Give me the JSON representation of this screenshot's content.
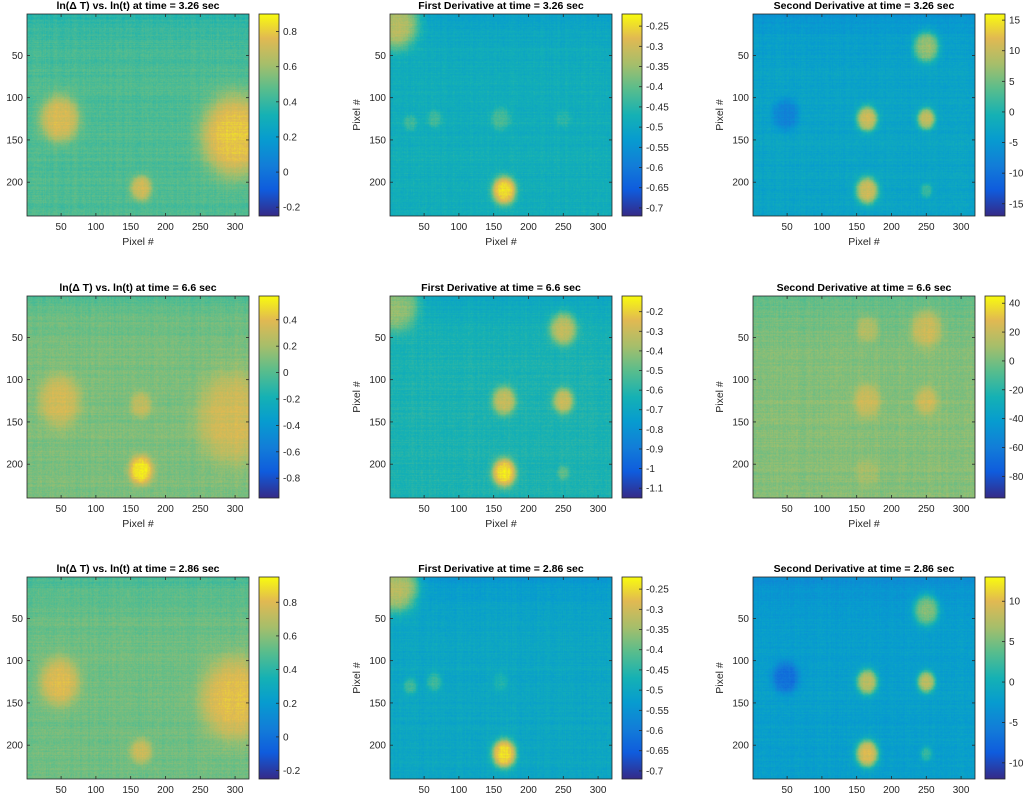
{
  "figure_title": "Thermal heatmap panels",
  "chart_data": [
    {
      "type": "heatmap",
      "title": "ln(Δ T) vs. ln(t) at time = 3.26 sec",
      "xlabel": "Pixel #",
      "ylabel": "",
      "xlim": [
        1,
        320
      ],
      "ylim": [
        1,
        240
      ],
      "xticks": [
        50,
        100,
        150,
        200,
        250,
        300
      ],
      "yticks": [
        50,
        100,
        150,
        200
      ],
      "clim": [
        -0.25,
        0.9
      ],
      "cticks": [
        -0.2,
        0,
        0.2,
        0.4,
        0.6,
        0.8
      ],
      "colorbar_tick_labels": [
        "-0.2",
        "0",
        "0.2",
        "0.4",
        "0.6",
        "0.8"
      ],
      "background_level": 0.45,
      "features": [
        {
          "x": 48,
          "y": 125,
          "r": 26,
          "value": 0.75
        },
        {
          "x": 165,
          "y": 207,
          "r": 14,
          "value": 0.72
        },
        {
          "x": 300,
          "y": 145,
          "r": 45,
          "value": 0.8
        }
      ]
    },
    {
      "type": "heatmap",
      "title": "First Derivative at time = 3.26 sec",
      "xlabel": "Pixel #",
      "ylabel": "Pixel #",
      "xlim": [
        1,
        320
      ],
      "ylim": [
        1,
        240
      ],
      "xticks": [
        50,
        100,
        150,
        200,
        250,
        300
      ],
      "yticks": [
        50,
        100,
        150,
        200
      ],
      "clim": [
        -0.72,
        -0.22
      ],
      "cticks": [
        -0.7,
        -0.65,
        -0.6,
        -0.55,
        -0.5,
        -0.45,
        -0.4,
        -0.35,
        -0.3,
        -0.25
      ],
      "colorbar_tick_labels": [
        "-0.7",
        "-0.65",
        "-0.6",
        "-0.55",
        "-0.5",
        "-0.45",
        "-0.4",
        "-0.35",
        "-0.3",
        "-0.25"
      ],
      "background_level": -0.48,
      "features": [
        {
          "x": 165,
          "y": 210,
          "r": 16,
          "value": -0.24
        },
        {
          "x": 160,
          "y": 125,
          "r": 13,
          "value": -0.42
        },
        {
          "x": 65,
          "y": 125,
          "r": 10,
          "value": -0.43
        },
        {
          "x": 30,
          "y": 130,
          "r": 9,
          "value": -0.43
        },
        {
          "x": 250,
          "y": 125,
          "r": 10,
          "value": -0.45
        },
        {
          "x": 10,
          "y": 10,
          "r": 30,
          "value": -0.3
        }
      ]
    },
    {
      "type": "heatmap",
      "title": "Second Derivative at time = 3.26 sec",
      "xlabel": "Pixel #",
      "ylabel": "Pixel #",
      "xlim": [
        1,
        320
      ],
      "ylim": [
        1,
        240
      ],
      "xticks": [
        50,
        100,
        150,
        200,
        250,
        300
      ],
      "yticks": [
        50,
        100,
        150,
        200
      ],
      "clim": [
        -17,
        16
      ],
      "cticks": [
        -15,
        -10,
        -5,
        0,
        5,
        10,
        15
      ],
      "colorbar_tick_labels": [
        "-15",
        "-10",
        "-5",
        "0",
        "5",
        "10",
        "15"
      ],
      "background_level": -3,
      "features": [
        {
          "x": 165,
          "y": 125,
          "r": 14,
          "value": 11
        },
        {
          "x": 250,
          "y": 125,
          "r": 12,
          "value": 10
        },
        {
          "x": 165,
          "y": 210,
          "r": 15,
          "value": 11
        },
        {
          "x": 250,
          "y": 40,
          "r": 17,
          "value": 8
        },
        {
          "x": 250,
          "y": 210,
          "r": 8,
          "value": 2
        },
        {
          "x": 48,
          "y": 120,
          "r": 18,
          "value": -8
        }
      ]
    },
    {
      "type": "heatmap",
      "title": "ln(Δ T) vs. ln(t) at time = 6.6 sec",
      "xlabel": "Pixel #",
      "ylabel": "",
      "xlim": [
        1,
        320
      ],
      "ylim": [
        1,
        240
      ],
      "xticks": [
        50,
        100,
        150,
        200,
        250,
        300
      ],
      "yticks": [
        50,
        100,
        150,
        200
      ],
      "clim": [
        -0.95,
        0.58
      ],
      "cticks": [
        -0.8,
        -0.6,
        -0.4,
        -0.2,
        0,
        0.2,
        0.4
      ],
      "colorbar_tick_labels": [
        "-0.8",
        "-0.6",
        "-0.4",
        "-0.2",
        "0",
        "0.2",
        "0.4"
      ],
      "background_level": 0.1,
      "features": [
        {
          "x": 48,
          "y": 125,
          "r": 28,
          "value": 0.35
        },
        {
          "x": 165,
          "y": 207,
          "r": 16,
          "value": 0.55
        },
        {
          "x": 165,
          "y": 130,
          "r": 14,
          "value": 0.3
        },
        {
          "x": 300,
          "y": 145,
          "r": 50,
          "value": 0.35
        }
      ]
    },
    {
      "type": "heatmap",
      "title": "First Derivative at time = 6.6 sec",
      "xlabel": "Pixel #",
      "ylabel": "Pixel #",
      "xlim": [
        1,
        320
      ],
      "ylim": [
        1,
        240
      ],
      "xticks": [
        50,
        100,
        150,
        200,
        250,
        300
      ],
      "yticks": [
        50,
        100,
        150,
        200
      ],
      "clim": [
        -1.15,
        -0.12
      ],
      "cticks": [
        -1.1,
        -1,
        -0.9,
        -0.8,
        -0.7,
        -0.6,
        -0.5,
        -0.4,
        -0.3,
        -0.2
      ],
      "colorbar_tick_labels": [
        "-1.1",
        "-1",
        "-0.9",
        "-0.8",
        "-0.7",
        "-0.6",
        "-0.5",
        "-0.4",
        "-0.3",
        "-0.2"
      ],
      "background_level": -0.62,
      "features": [
        {
          "x": 165,
          "y": 210,
          "r": 16,
          "value": -0.15
        },
        {
          "x": 165,
          "y": 125,
          "r": 16,
          "value": -0.3
        },
        {
          "x": 250,
          "y": 125,
          "r": 14,
          "value": -0.3
        },
        {
          "x": 250,
          "y": 40,
          "r": 18,
          "value": -0.3
        },
        {
          "x": 250,
          "y": 210,
          "r": 8,
          "value": -0.5
        },
        {
          "x": 10,
          "y": 10,
          "r": 30,
          "value": -0.35
        }
      ]
    },
    {
      "type": "heatmap",
      "title": "Second Derivative at time = 6.6 sec",
      "xlabel": "Pixel #",
      "ylabel": "Pixel #",
      "xlim": [
        1,
        320
      ],
      "ylim": [
        1,
        240
      ],
      "xticks": [
        50,
        100,
        150,
        200,
        250,
        300
      ],
      "yticks": [
        50,
        100,
        150,
        200
      ],
      "clim": [
        -95,
        45
      ],
      "cticks": [
        -80,
        -60,
        -40,
        -20,
        0,
        20,
        40
      ],
      "colorbar_tick_labels": [
        "-80",
        "-60",
        "-40",
        "-20",
        "0",
        "20",
        "40"
      ],
      "background_level": 3,
      "features": [
        {
          "x": 165,
          "y": 125,
          "r": 18,
          "value": 22
        },
        {
          "x": 250,
          "y": 125,
          "r": 15,
          "value": 22
        },
        {
          "x": 250,
          "y": 40,
          "r": 20,
          "value": 25
        },
        {
          "x": 165,
          "y": 40,
          "r": 14,
          "value": 18
        },
        {
          "x": 165,
          "y": 210,
          "r": 16,
          "value": 10
        }
      ]
    },
    {
      "type": "heatmap",
      "title": "ln(Δ T) vs. ln(t) at time = 2.86 sec",
      "xlabel": "",
      "ylabel": "",
      "xlim": [
        1,
        320
      ],
      "ylim": [
        1,
        240
      ],
      "xticks": [
        50,
        100,
        150,
        200,
        250,
        300
      ],
      "yticks": [
        50,
        100,
        150,
        200
      ],
      "clim": [
        -0.25,
        0.95
      ],
      "cticks": [
        -0.2,
        0,
        0.2,
        0.4,
        0.6,
        0.8
      ],
      "colorbar_tick_labels": [
        "-0.2",
        "0",
        "0.2",
        "0.4",
        "0.6",
        "0.8"
      ],
      "background_level": 0.55,
      "features": [
        {
          "x": 48,
          "y": 125,
          "r": 26,
          "value": 0.8
        },
        {
          "x": 165,
          "y": 207,
          "r": 14,
          "value": 0.75
        },
        {
          "x": 300,
          "y": 145,
          "r": 45,
          "value": 0.82
        }
      ]
    },
    {
      "type": "heatmap",
      "title": "First Derivative at time = 2.86 sec",
      "xlabel": "",
      "ylabel": "Pixel #",
      "xlim": [
        1,
        320
      ],
      "ylim": [
        1,
        240
      ],
      "xticks": [
        50,
        100,
        150,
        200,
        250,
        300
      ],
      "yticks": [
        50,
        100,
        150,
        200
      ],
      "clim": [
        -0.72,
        -0.22
      ],
      "cticks": [
        -0.7,
        -0.65,
        -0.6,
        -0.55,
        -0.5,
        -0.45,
        -0.4,
        -0.35,
        -0.3,
        -0.25
      ],
      "colorbar_tick_labels": [
        "-0.7",
        "-0.65",
        "-0.6",
        "-0.55",
        "-0.5",
        "-0.45",
        "-0.4",
        "-0.35",
        "-0.3",
        "-0.25"
      ],
      "background_level": -0.5,
      "features": [
        {
          "x": 165,
          "y": 210,
          "r": 16,
          "value": -0.24
        },
        {
          "x": 65,
          "y": 125,
          "r": 10,
          "value": -0.43
        },
        {
          "x": 30,
          "y": 130,
          "r": 9,
          "value": -0.43
        },
        {
          "x": 160,
          "y": 125,
          "r": 10,
          "value": -0.46
        },
        {
          "x": 10,
          "y": 10,
          "r": 30,
          "value": -0.3
        }
      ]
    },
    {
      "type": "heatmap",
      "title": "Second Derivative at time = 2.86 sec",
      "xlabel": "",
      "ylabel": "Pixel #",
      "xlim": [
        1,
        320
      ],
      "ylim": [
        1,
        240
      ],
      "xticks": [
        50,
        100,
        150,
        200,
        250,
        300
      ],
      "yticks": [
        50,
        100,
        150,
        200
      ],
      "clim": [
        -12,
        13
      ],
      "cticks": [
        -10,
        -5,
        0,
        5,
        10
      ],
      "colorbar_tick_labels": [
        "-10",
        "-5",
        "0",
        "5",
        "10"
      ],
      "background_level": -2,
      "features": [
        {
          "x": 165,
          "y": 125,
          "r": 14,
          "value": 8
        },
        {
          "x": 250,
          "y": 125,
          "r": 12,
          "value": 8
        },
        {
          "x": 165,
          "y": 210,
          "r": 15,
          "value": 10
        },
        {
          "x": 250,
          "y": 40,
          "r": 17,
          "value": 6
        },
        {
          "x": 250,
          "y": 210,
          "r": 8,
          "value": 2
        },
        {
          "x": 48,
          "y": 120,
          "r": 18,
          "value": -7
        }
      ]
    }
  ]
}
